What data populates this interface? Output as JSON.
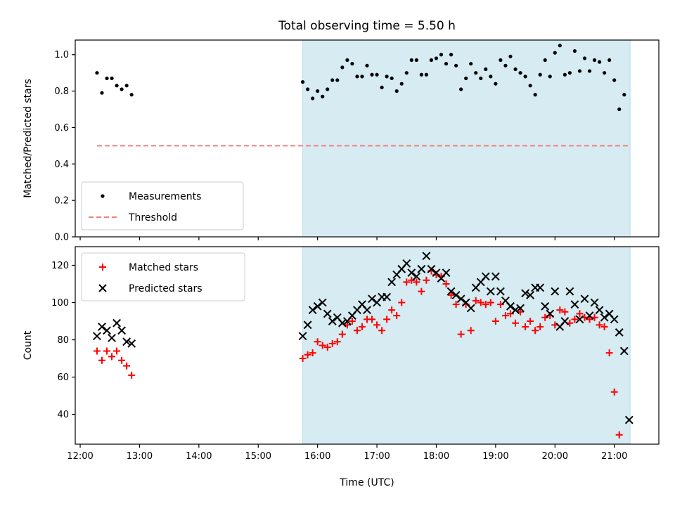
{
  "title": "Total observing time = 5.50 h",
  "chart_data": [
    {
      "type": "scatter",
      "ylabel": "Matched/Predicted stars",
      "xlim": [
        "11:55",
        "21:45"
      ],
      "ylim": [
        0,
        1.08
      ],
      "ytick_values": [
        0.0,
        0.2,
        0.4,
        0.6,
        0.8,
        1.0
      ],
      "ytick_labels": [
        "0.0",
        "0.2",
        "0.4",
        "0.6",
        "0.8",
        "1.0"
      ],
      "shaded_region": {
        "start": "15:45",
        "end": "21:16",
        "color": "#add8e6"
      },
      "legend_position": "lower-left",
      "series": [
        {
          "name": "Measurements",
          "marker": "dot",
          "color": "#000000",
          "points": [
            [
              "12:17",
              0.9
            ],
            [
              "12:22",
              0.79
            ],
            [
              "12:27",
              0.87
            ],
            [
              "12:32",
              0.87
            ],
            [
              "12:37",
              0.83
            ],
            [
              "12:42",
              0.81
            ],
            [
              "12:47",
              0.83
            ],
            [
              "12:52",
              0.78
            ],
            [
              "15:45",
              0.85
            ],
            [
              "15:50",
              0.81
            ],
            [
              "15:55",
              0.76
            ],
            [
              "16:00",
              0.8
            ],
            [
              "16:05",
              0.77
            ],
            [
              "16:10",
              0.81
            ],
            [
              "16:15",
              0.86
            ],
            [
              "16:20",
              0.86
            ],
            [
              "16:25",
              0.93
            ],
            [
              "16:30",
              0.97
            ],
            [
              "16:35",
              0.95
            ],
            [
              "16:40",
              0.88
            ],
            [
              "16:45",
              0.88
            ],
            [
              "16:50",
              0.94
            ],
            [
              "16:55",
              0.89
            ],
            [
              "17:00",
              0.89
            ],
            [
              "17:05",
              0.82
            ],
            [
              "17:10",
              0.88
            ],
            [
              "17:15",
              0.87
            ],
            [
              "17:20",
              0.8
            ],
            [
              "17:25",
              0.84
            ],
            [
              "17:30",
              0.9
            ],
            [
              "17:35",
              0.97
            ],
            [
              "17:40",
              0.97
            ],
            [
              "17:45",
              0.89
            ],
            [
              "17:50",
              0.89
            ],
            [
              "17:55",
              0.97
            ],
            [
              "18:00",
              0.98
            ],
            [
              "18:05",
              1.0
            ],
            [
              "18:10",
              0.95
            ],
            [
              "18:15",
              1.0
            ],
            [
              "18:20",
              0.94
            ],
            [
              "18:25",
              0.81
            ],
            [
              "18:30",
              0.87
            ],
            [
              "18:35",
              0.95
            ],
            [
              "18:40",
              0.9
            ],
            [
              "18:45",
              0.87
            ],
            [
              "18:50",
              0.92
            ],
            [
              "18:55",
              0.88
            ],
            [
              "19:00",
              0.84
            ],
            [
              "19:05",
              0.97
            ],
            [
              "19:10",
              0.94
            ],
            [
              "19:15",
              0.99
            ],
            [
              "19:20",
              0.92
            ],
            [
              "19:25",
              0.9
            ],
            [
              "19:30",
              0.88
            ],
            [
              "19:35",
              0.83
            ],
            [
              "19:40",
              0.78
            ],
            [
              "19:45",
              0.89
            ],
            [
              "19:50",
              0.97
            ],
            [
              "19:55",
              0.88
            ],
            [
              "20:00",
              1.01
            ],
            [
              "20:05",
              1.05
            ],
            [
              "20:10",
              0.89
            ],
            [
              "20:15",
              0.9
            ],
            [
              "20:20",
              1.02
            ],
            [
              "20:25",
              0.91
            ],
            [
              "20:30",
              0.98
            ],
            [
              "20:35",
              0.91
            ],
            [
              "20:40",
              0.97
            ],
            [
              "20:45",
              0.96
            ],
            [
              "20:50",
              0.9
            ],
            [
              "20:55",
              0.97
            ],
            [
              "21:00",
              0.86
            ],
            [
              "21:05",
              0.7
            ],
            [
              "21:10",
              0.78
            ]
          ]
        },
        {
          "name": "Threshold",
          "marker": "dashed-line",
          "color": "#f08080",
          "points": [
            [
              "12:17",
              0.5
            ],
            [
              "21:16",
              0.5
            ]
          ]
        }
      ]
    },
    {
      "type": "scatter",
      "xlabel": "Time (UTC)",
      "ylabel": "Count",
      "xlim": [
        "11:55",
        "21:45"
      ],
      "ylim": [
        24,
        130
      ],
      "ytick_values": [
        40,
        60,
        80,
        100,
        120
      ],
      "ytick_labels": [
        "40",
        "60",
        "80",
        "100",
        "120"
      ],
      "xtick_values": [
        "12:00",
        "13:00",
        "14:00",
        "15:00",
        "16:00",
        "17:00",
        "18:00",
        "19:00",
        "20:00",
        "21:00"
      ],
      "xtick_labels": [
        "12:00",
        "13:00",
        "14:00",
        "15:00",
        "16:00",
        "17:00",
        "18:00",
        "19:00",
        "20:00",
        "21:00"
      ],
      "shaded_region": {
        "start": "15:45",
        "end": "21:16",
        "color": "#add8e6"
      },
      "legend_position": "upper-left",
      "series": [
        {
          "name": "Matched stars",
          "marker": "plus",
          "color": "#ff0000",
          "points": [
            [
              "12:17",
              74
            ],
            [
              "12:22",
              69
            ],
            [
              "12:27",
              74
            ],
            [
              "12:32",
              71
            ],
            [
              "12:37",
              74
            ],
            [
              "12:42",
              69
            ],
            [
              "12:47",
              66
            ],
            [
              "12:52",
              61
            ],
            [
              "15:45",
              70
            ],
            [
              "15:50",
              72
            ],
            [
              "15:55",
              73
            ],
            [
              "16:00",
              79
            ],
            [
              "16:05",
              77
            ],
            [
              "16:10",
              76
            ],
            [
              "16:15",
              78
            ],
            [
              "16:20",
              79
            ],
            [
              "16:25",
              83
            ],
            [
              "16:30",
              88
            ],
            [
              "16:35",
              90
            ],
            [
              "16:40",
              85
            ],
            [
              "16:45",
              87
            ],
            [
              "16:50",
              91
            ],
            [
              "16:55",
              91
            ],
            [
              "17:00",
              88
            ],
            [
              "17:05",
              85
            ],
            [
              "17:10",
              91
            ],
            [
              "17:15",
              96
            ],
            [
              "17:20",
              93
            ],
            [
              "17:25",
              100
            ],
            [
              "17:30",
              111
            ],
            [
              "17:35",
              112
            ],
            [
              "17:40",
              111
            ],
            [
              "17:45",
              106
            ],
            [
              "17:50",
              112
            ],
            [
              "17:55",
              117
            ],
            [
              "18:00",
              115
            ],
            [
              "18:05",
              114
            ],
            [
              "18:10",
              110
            ],
            [
              "18:15",
              104
            ],
            [
              "18:20",
              99
            ],
            [
              "18:25",
              83
            ],
            [
              "18:30",
              99
            ],
            [
              "18:35",
              85
            ],
            [
              "18:40",
              101
            ],
            [
              "18:45",
              100
            ],
            [
              "18:50",
              99
            ],
            [
              "18:55",
              100
            ],
            [
              "19:00",
              90
            ],
            [
              "19:05",
              99
            ],
            [
              "19:10",
              93
            ],
            [
              "19:15",
              94
            ],
            [
              "19:20",
              89
            ],
            [
              "19:25",
              95
            ],
            [
              "19:30",
              87
            ],
            [
              "19:35",
              90
            ],
            [
              "19:40",
              85
            ],
            [
              "19:45",
              87
            ],
            [
              "19:50",
              92
            ],
            [
              "19:55",
              93
            ],
            [
              "20:00",
              88
            ],
            [
              "20:05",
              96
            ],
            [
              "20:10",
              95
            ],
            [
              "20:15",
              89
            ],
            [
              "20:20",
              91
            ],
            [
              "20:25",
              94
            ],
            [
              "20:30",
              92
            ],
            [
              "20:35",
              91
            ],
            [
              "20:40",
              92
            ],
            [
              "20:45",
              88
            ],
            [
              "20:50",
              87
            ],
            [
              "20:55",
              73
            ],
            [
              "21:00",
              52
            ],
            [
              "21:05",
              29
            ]
          ]
        },
        {
          "name": "Predicted stars",
          "marker": "x",
          "color": "#000000",
          "points": [
            [
              "12:17",
              82
            ],
            [
              "12:22",
              87
            ],
            [
              "12:27",
              85
            ],
            [
              "12:32",
              81
            ],
            [
              "12:37",
              89
            ],
            [
              "12:42",
              85
            ],
            [
              "12:47",
              79
            ],
            [
              "12:52",
              78
            ],
            [
              "15:45",
              82
            ],
            [
              "15:50",
              88
            ],
            [
              "15:55",
              96
            ],
            [
              "16:00",
              98
            ],
            [
              "16:05",
              100
            ],
            [
              "16:10",
              94
            ],
            [
              "16:15",
              90
            ],
            [
              "16:20",
              92
            ],
            [
              "16:25",
              89
            ],
            [
              "16:30",
              90
            ],
            [
              "16:35",
              93
            ],
            [
              "16:40",
              96
            ],
            [
              "16:45",
              99
            ],
            [
              "16:50",
              96
            ],
            [
              "16:55",
              102
            ],
            [
              "17:00",
              100
            ],
            [
              "17:05",
              103
            ],
            [
              "17:10",
              103
            ],
            [
              "17:15",
              111
            ],
            [
              "17:20",
              115
            ],
            [
              "17:25",
              118
            ],
            [
              "17:30",
              121
            ],
            [
              "17:35",
              116
            ],
            [
              "17:40",
              114
            ],
            [
              "17:45",
              118
            ],
            [
              "17:50",
              125
            ],
            [
              "17:55",
              118
            ],
            [
              "18:00",
              116
            ],
            [
              "18:05",
              113
            ],
            [
              "18:10",
              116
            ],
            [
              "18:15",
              106
            ],
            [
              "18:20",
              104
            ],
            [
              "18:25",
              102
            ],
            [
              "18:30",
              100
            ],
            [
              "18:35",
              97
            ],
            [
              "18:40",
              108
            ],
            [
              "18:45",
              111
            ],
            [
              "18:50",
              114
            ],
            [
              "18:55",
              106
            ],
            [
              "19:00",
              114
            ],
            [
              "19:05",
              106
            ],
            [
              "19:10",
              101
            ],
            [
              "19:15",
              98
            ],
            [
              "19:20",
              96
            ],
            [
              "19:25",
              97
            ],
            [
              "19:30",
              105
            ],
            [
              "19:35",
              104
            ],
            [
              "19:40",
              108
            ],
            [
              "19:45",
              108
            ],
            [
              "19:50",
              98
            ],
            [
              "19:55",
              94
            ],
            [
              "20:00",
              106
            ],
            [
              "20:05",
              87
            ],
            [
              "20:10",
              90
            ],
            [
              "20:15",
              106
            ],
            [
              "20:20",
              99
            ],
            [
              "20:25",
              91
            ],
            [
              "20:30",
              102
            ],
            [
              "20:35",
              93
            ],
            [
              "20:40",
              100
            ],
            [
              "20:45",
              96
            ],
            [
              "20:50",
              92
            ],
            [
              "20:55",
              94
            ],
            [
              "21:00",
              91
            ],
            [
              "21:05",
              84
            ],
            [
              "21:10",
              74
            ],
            [
              "21:15",
              37
            ]
          ]
        }
      ]
    }
  ]
}
